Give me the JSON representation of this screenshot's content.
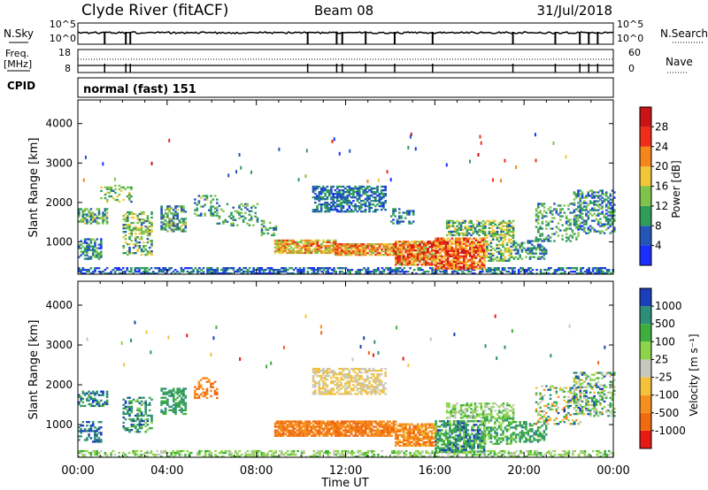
{
  "header": {
    "station": "Clyde River (fitACF)",
    "beam": "Beam 08",
    "date": "31/Jul/2018"
  },
  "summary": {
    "nsky_label": "N.Sky",
    "nsearch_label": "N.Search",
    "nsky_tick_top": "10^5",
    "nsky_tick_bottom": "10^0",
    "freq_label_1": "Freq.",
    "freq_label_2": "[MHz]",
    "freq_tick_top": "18",
    "freq_tick_bottom": "8",
    "nave_label": "Nave",
    "nave_tick_top": "60",
    "nave_tick_bottom": "0",
    "cpid_label": "CPID",
    "cpid_text": "normal (fast) 151"
  },
  "chart_data": [
    {
      "type": "heatmap",
      "name_label": "Power",
      "colorbar_label": "Power [dB]",
      "ylabel": "Slant Range [km]",
      "yticks": [
        "1000",
        "2000",
        "3000",
        "4000"
      ],
      "ylim": [
        180,
        4600
      ],
      "xlim_hours": [
        0,
        24
      ],
      "colorbar_ticks": [
        "4",
        "8",
        "12",
        "16",
        "20",
        "24",
        "28"
      ],
      "colorbar_range": [
        0,
        32
      ],
      "colors": [
        "#1a2fff",
        "#2456b8",
        "#2e9d5a",
        "#7fc34c",
        "#f3c63a",
        "#f5861c",
        "#ef2d18",
        "#c81414"
      ],
      "regions": [
        {
          "t0": 0.0,
          "t1": 24.0,
          "r0": 180,
          "r1": 330,
          "density": 0.55,
          "vmin": 1,
          "vmax": 12
        },
        {
          "t0": 0.0,
          "t1": 1.0,
          "r0": 550,
          "r1": 1050,
          "density": 0.6,
          "vmin": 3,
          "vmax": 14
        },
        {
          "t0": 0.0,
          "t1": 1.3,
          "r0": 1450,
          "r1": 1850,
          "density": 0.6,
          "vmin": 6,
          "vmax": 18
        },
        {
          "t0": 1.0,
          "t1": 2.4,
          "r0": 2000,
          "r1": 2450,
          "density": 0.3,
          "vmin": 6,
          "vmax": 18
        },
        {
          "t0": 2.0,
          "t1": 3.3,
          "r0": 650,
          "r1": 1750,
          "density": 0.45,
          "vmin": 6,
          "vmax": 20
        },
        {
          "t0": 3.7,
          "t1": 4.8,
          "r0": 1250,
          "r1": 1900,
          "density": 0.6,
          "vmin": 4,
          "vmax": 18
        },
        {
          "t0": 5.2,
          "t1": 6.2,
          "r0": 1650,
          "r1": 2150,
          "density": 0.35,
          "vmin": 6,
          "vmax": 18
        },
        {
          "t0": 6.2,
          "t1": 8.0,
          "r0": 1400,
          "r1": 1950,
          "density": 0.3,
          "vmin": 6,
          "vmax": 16
        },
        {
          "t0": 8.2,
          "t1": 9.0,
          "r0": 1150,
          "r1": 1550,
          "density": 0.3,
          "vmin": 6,
          "vmax": 16
        },
        {
          "t0": 8.8,
          "t1": 11.5,
          "r0": 700,
          "r1": 1050,
          "density": 0.8,
          "vmin": 12,
          "vmax": 26
        },
        {
          "t0": 11.5,
          "t1": 14.2,
          "r0": 650,
          "r1": 950,
          "density": 0.85,
          "vmin": 14,
          "vmax": 28
        },
        {
          "t0": 14.2,
          "t1": 16.0,
          "r0": 400,
          "r1": 1000,
          "density": 0.85,
          "vmin": 14,
          "vmax": 30
        },
        {
          "t0": 16.0,
          "t1": 18.2,
          "r0": 300,
          "r1": 1100,
          "density": 0.8,
          "vmin": 16,
          "vmax": 31
        },
        {
          "t0": 18.2,
          "t1": 19.5,
          "r0": 500,
          "r1": 1200,
          "density": 0.5,
          "vmin": 6,
          "vmax": 20
        },
        {
          "t0": 10.5,
          "t1": 13.8,
          "r0": 1750,
          "r1": 2400,
          "density": 0.6,
          "vmin": 3,
          "vmax": 12
        },
        {
          "t0": 14.0,
          "t1": 15.0,
          "r0": 1450,
          "r1": 1850,
          "density": 0.4,
          "vmin": 3,
          "vmax": 12
        },
        {
          "t0": 16.5,
          "t1": 19.5,
          "r0": 1150,
          "r1": 1550,
          "density": 0.6,
          "vmin": 6,
          "vmax": 20
        },
        {
          "t0": 19.5,
          "t1": 21.0,
          "r0": 550,
          "r1": 1050,
          "density": 0.45,
          "vmin": 4,
          "vmax": 14
        },
        {
          "t0": 20.5,
          "t1": 22.5,
          "r0": 1000,
          "r1": 1950,
          "density": 0.3,
          "vmin": 6,
          "vmax": 16
        },
        {
          "t0": 22.2,
          "t1": 24.0,
          "r0": 1200,
          "r1": 2300,
          "density": 0.45,
          "vmin": 3,
          "vmax": 14
        }
      ]
    },
    {
      "type": "heatmap",
      "name_label": "Velocity",
      "colorbar_label": "Velocity [m s⁻¹]",
      "ylabel": "Slant Range [km]",
      "yticks": [
        "1000",
        "2000",
        "3000",
        "4000"
      ],
      "ylim": [
        180,
        4600
      ],
      "xlim_hours": [
        0,
        24
      ],
      "xticks": [
        "00:00",
        "04:00",
        "08:00",
        "12:00",
        "16:00",
        "20:00",
        "00:00"
      ],
      "xlabel": "Time UT",
      "colorbar_ticks": [
        "1000",
        "500",
        "100",
        "25",
        "-25",
        "-100",
        "-500",
        "-1000"
      ],
      "colors": [
        "#1a3fb8",
        "#2e8f78",
        "#3fae3f",
        "#8cd44a",
        "#c8c8be",
        "#f3c23a",
        "#f5901e",
        "#f06a12",
        "#e61a14"
      ],
      "regions": [
        {
          "t0": 0.0,
          "t1": 24.0,
          "r0": 180,
          "r1": 330,
          "density": 0.5,
          "cmin": 2,
          "cmax": 4
        },
        {
          "t0": 0.0,
          "t1": 1.0,
          "r0": 550,
          "r1": 1050,
          "density": 0.5,
          "cmin": 0,
          "cmax": 1
        },
        {
          "t0": 0.0,
          "t1": 1.3,
          "r0": 1450,
          "r1": 1850,
          "density": 0.5,
          "cmin": 0,
          "cmax": 2
        },
        {
          "t0": 2.0,
          "t1": 3.3,
          "r0": 800,
          "r1": 1700,
          "density": 0.35,
          "cmin": 0,
          "cmax": 3
        },
        {
          "t0": 3.7,
          "t1": 4.8,
          "r0": 1250,
          "r1": 1900,
          "density": 0.6,
          "cmin": 1,
          "cmax": 2
        },
        {
          "t0": 5.2,
          "t1": 6.2,
          "r0": 1650,
          "r1": 2150,
          "density": 0.35,
          "cmin": 6,
          "cmax": 7
        },
        {
          "t0": 8.8,
          "t1": 14.2,
          "r0": 700,
          "r1": 1100,
          "density": 0.8,
          "cmin": 6,
          "cmax": 7
        },
        {
          "t0": 14.2,
          "t1": 16.0,
          "r0": 450,
          "r1": 1000,
          "density": 0.8,
          "cmin": 5,
          "cmax": 7
        },
        {
          "t0": 16.0,
          "t1": 18.2,
          "r0": 300,
          "r1": 1100,
          "density": 0.7,
          "cmin": 0,
          "cmax": 3
        },
        {
          "t0": 18.2,
          "t1": 19.5,
          "r0": 500,
          "r1": 1200,
          "density": 0.5,
          "cmin": 1,
          "cmax": 3
        },
        {
          "t0": 10.5,
          "t1": 13.8,
          "r0": 1750,
          "r1": 2400,
          "density": 0.6,
          "cmin": 4,
          "cmax": 5
        },
        {
          "t0": 16.5,
          "t1": 19.5,
          "r0": 1150,
          "r1": 1550,
          "density": 0.5,
          "cmin": 2,
          "cmax": 4
        },
        {
          "t0": 19.5,
          "t1": 21.0,
          "r0": 550,
          "r1": 1050,
          "density": 0.45,
          "cmin": 1,
          "cmax": 2
        },
        {
          "t0": 20.5,
          "t1": 22.5,
          "r0": 1000,
          "r1": 1950,
          "density": 0.3,
          "cmin": 0,
          "cmax": 7
        },
        {
          "t0": 22.2,
          "t1": 24.0,
          "r0": 1200,
          "r1": 2300,
          "density": 0.45,
          "cmin": 0,
          "cmax": 5
        }
      ]
    }
  ]
}
